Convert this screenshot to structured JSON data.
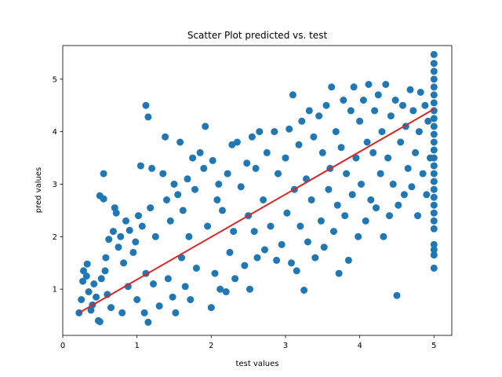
{
  "chart_data": {
    "type": "scatter",
    "title": "Scatter Plot predicted vs. test",
    "xlabel": "test values",
    "ylabel": "pred values",
    "xlim": [
      0,
      5.24
    ],
    "ylim": [
      0.12,
      5.64
    ],
    "xticks": [
      0,
      1,
      2,
      3,
      4,
      5
    ],
    "yticks": [
      1,
      2,
      3,
      4,
      5
    ],
    "grid": false,
    "series": [
      {
        "kind": "scatter",
        "color": "#1f77b4",
        "points": [
          [
            0.22,
            0.55
          ],
          [
            0.25,
            0.8
          ],
          [
            0.27,
            1.15
          ],
          [
            0.28,
            1.35
          ],
          [
            0.32,
            1.25
          ],
          [
            0.33,
            1.48
          ],
          [
            0.35,
            0.95
          ],
          [
            0.38,
            0.6
          ],
          [
            0.4,
            0.7
          ],
          [
            0.42,
            1.1
          ],
          [
            0.45,
            0.85
          ],
          [
            0.48,
            0.4
          ],
          [
            0.5,
            0.38
          ],
          [
            0.5,
            2.78
          ],
          [
            0.52,
            1.2
          ],
          [
            0.55,
            2.72
          ],
          [
            0.55,
            3.2
          ],
          [
            0.57,
            1.35
          ],
          [
            0.58,
            1.6
          ],
          [
            0.6,
            0.9
          ],
          [
            0.62,
            1.95
          ],
          [
            0.65,
            0.65
          ],
          [
            0.68,
            2.1
          ],
          [
            0.7,
            2.55
          ],
          [
            0.72,
            2.45
          ],
          [
            0.75,
            1.8
          ],
          [
            0.78,
            2.0
          ],
          [
            0.8,
            0.55
          ],
          [
            0.82,
            1.5
          ],
          [
            0.85,
            2.3
          ],
          [
            0.88,
            1.05
          ],
          [
            0.9,
            2.12
          ],
          [
            0.95,
            1.7
          ],
          [
            0.98,
            1.9
          ],
          [
            1.0,
            0.8
          ],
          [
            1.02,
            2.4
          ],
          [
            1.05,
            3.35
          ],
          [
            1.07,
            2.2
          ],
          [
            1.1,
            0.55
          ],
          [
            1.12,
            4.5
          ],
          [
            1.12,
            1.3
          ],
          [
            1.15,
            4.28
          ],
          [
            1.15,
            0.37
          ],
          [
            1.18,
            2.55
          ],
          [
            1.2,
            3.3
          ],
          [
            1.22,
            1.1
          ],
          [
            1.25,
            2.0
          ],
          [
            1.3,
            0.68
          ],
          [
            1.35,
            3.2
          ],
          [
            1.38,
            3.9
          ],
          [
            1.4,
            2.7
          ],
          [
            1.42,
            1.2
          ],
          [
            1.45,
            2.3
          ],
          [
            1.48,
            0.85
          ],
          [
            1.5,
            3.0
          ],
          [
            1.52,
            0.55
          ],
          [
            1.55,
            2.8
          ],
          [
            1.58,
            3.8
          ],
          [
            1.6,
            1.6
          ],
          [
            1.62,
            2.5
          ],
          [
            1.65,
            1.05
          ],
          [
            1.68,
            3.1
          ],
          [
            1.7,
            2.0
          ],
          [
            1.72,
            0.8
          ],
          [
            1.75,
            3.5
          ],
          [
            1.78,
            2.9
          ],
          [
            1.8,
            1.4
          ],
          [
            1.85,
            3.6
          ],
          [
            1.9,
            3.3
          ],
          [
            1.92,
            4.1
          ],
          [
            1.95,
            2.2
          ],
          [
            2.0,
            0.65
          ],
          [
            2.02,
            3.45
          ],
          [
            2.05,
            1.3
          ],
          [
            2.08,
            2.7
          ],
          [
            2.1,
            3.0
          ],
          [
            2.12,
            1.0
          ],
          [
            2.15,
            2.5
          ],
          [
            2.2,
            0.95
          ],
          [
            2.22,
            3.2
          ],
          [
            2.25,
            1.7
          ],
          [
            2.28,
            3.75
          ],
          [
            2.3,
            2.1
          ],
          [
            2.32,
            1.2
          ],
          [
            2.35,
            3.8
          ],
          [
            2.4,
            2.95
          ],
          [
            2.45,
            1.45
          ],
          [
            2.48,
            3.4
          ],
          [
            2.5,
            2.4
          ],
          [
            2.52,
            1.0
          ],
          [
            2.55,
            3.9
          ],
          [
            2.58,
            2.1
          ],
          [
            2.6,
            3.3
          ],
          [
            2.62,
            1.6
          ],
          [
            2.65,
            4.0
          ],
          [
            2.7,
            2.7
          ],
          [
            2.72,
            1.75
          ],
          [
            2.75,
            3.6
          ],
          [
            2.8,
            2.2
          ],
          [
            2.85,
            4.0
          ],
          [
            2.88,
            1.55
          ],
          [
            2.9,
            3.2
          ],
          [
            2.95,
            1.85
          ],
          [
            3.0,
            3.5
          ],
          [
            3.02,
            2.45
          ],
          [
            3.05,
            4.05
          ],
          [
            3.08,
            1.5
          ],
          [
            3.1,
            4.7
          ],
          [
            3.12,
            2.9
          ],
          [
            3.15,
            1.35
          ],
          [
            3.18,
            3.75
          ],
          [
            3.2,
            2.2
          ],
          [
            3.22,
            4.2
          ],
          [
            3.25,
            0.98
          ],
          [
            3.28,
            3.1
          ],
          [
            3.3,
            1.9
          ],
          [
            3.32,
            4.4
          ],
          [
            3.35,
            2.7
          ],
          [
            3.38,
            3.9
          ],
          [
            3.4,
            1.6
          ],
          [
            3.45,
            4.3
          ],
          [
            3.48,
            2.3
          ],
          [
            3.5,
            3.6
          ],
          [
            3.52,
            1.8
          ],
          [
            3.55,
            4.5
          ],
          [
            3.58,
            2.9
          ],
          [
            3.6,
            3.3
          ],
          [
            3.62,
            4.85
          ],
          [
            3.65,
            2.1
          ],
          [
            3.68,
            4.0
          ],
          [
            3.7,
            2.6
          ],
          [
            3.72,
            1.3
          ],
          [
            3.75,
            3.7
          ],
          [
            3.78,
            4.6
          ],
          [
            3.8,
            2.4
          ],
          [
            3.82,
            3.2
          ],
          [
            3.85,
            1.55
          ],
          [
            3.88,
            4.4
          ],
          [
            3.9,
            2.8
          ],
          [
            3.92,
            4.85
          ],
          [
            3.95,
            3.5
          ],
          [
            3.98,
            2.0
          ],
          [
            4.0,
            4.2
          ],
          [
            4.02,
            3.0
          ],
          [
            4.05,
            4.6
          ],
          [
            4.08,
            2.3
          ],
          [
            4.1,
            3.8
          ],
          [
            4.12,
            4.9
          ],
          [
            4.15,
            2.7
          ],
          [
            4.18,
            3.6
          ],
          [
            4.2,
            4.4
          ],
          [
            4.22,
            2.55
          ],
          [
            4.25,
            4.7
          ],
          [
            4.28,
            3.2
          ],
          [
            4.3,
            4.0
          ],
          [
            4.32,
            2.0
          ],
          [
            4.35,
            4.9
          ],
          [
            4.38,
            3.5
          ],
          [
            4.4,
            2.4
          ],
          [
            4.42,
            4.3
          ],
          [
            4.45,
            3.0
          ],
          [
            4.48,
            4.6
          ],
          [
            4.5,
            0.88
          ],
          [
            4.52,
            2.6
          ],
          [
            4.55,
            3.8
          ],
          [
            4.58,
            4.5
          ],
          [
            4.6,
            2.8
          ],
          [
            4.62,
            4.1
          ],
          [
            4.65,
            3.3
          ],
          [
            4.68,
            4.8
          ],
          [
            4.7,
            2.95
          ],
          [
            4.72,
            4.4
          ],
          [
            4.75,
            3.6
          ],
          [
            4.78,
            2.4
          ],
          [
            4.8,
            4.0
          ],
          [
            4.82,
            4.75
          ],
          [
            4.85,
            3.2
          ],
          [
            4.88,
            4.5
          ],
          [
            4.9,
            2.8
          ],
          [
            4.92,
            4.2
          ],
          [
            4.95,
            3.5
          ],
          [
            5.0,
            5.47
          ],
          [
            5.0,
            5.3
          ],
          [
            5.0,
            5.15
          ],
          [
            5.0,
            5.0
          ],
          [
            5.0,
            4.85
          ],
          [
            5.0,
            4.7
          ],
          [
            5.0,
            4.55
          ],
          [
            5.0,
            4.4
          ],
          [
            5.0,
            4.25
          ],
          [
            5.0,
            4.1
          ],
          [
            5.0,
            3.95
          ],
          [
            5.0,
            3.8
          ],
          [
            5.0,
            3.65
          ],
          [
            5.0,
            3.5
          ],
          [
            5.0,
            3.35
          ],
          [
            5.0,
            3.2
          ],
          [
            5.0,
            3.05
          ],
          [
            5.0,
            2.9
          ],
          [
            5.0,
            2.75
          ],
          [
            5.0,
            2.6
          ],
          [
            5.0,
            2.45
          ],
          [
            5.0,
            2.3
          ],
          [
            5.0,
            2.15
          ],
          [
            5.0,
            1.85
          ],
          [
            5.0,
            1.75
          ],
          [
            5.0,
            1.65
          ],
          [
            5.0,
            1.4
          ]
        ]
      },
      {
        "kind": "line",
        "color": "#d62728",
        "points": [
          [
            0.22,
            0.55
          ],
          [
            5.0,
            4.43
          ]
        ]
      }
    ]
  }
}
